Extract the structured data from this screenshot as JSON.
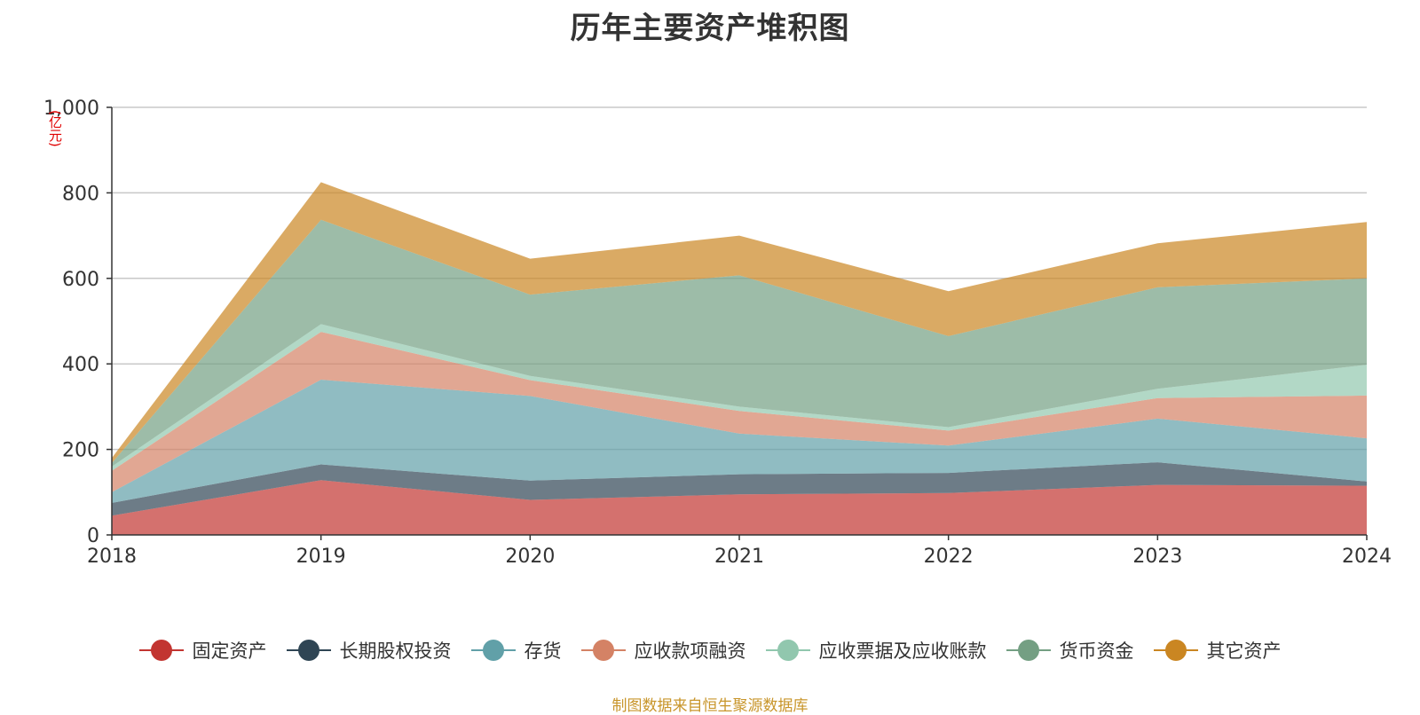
{
  "title": "历年主要资产堆积图",
  "unit": "(亿元)",
  "source": "制图数据来自恒生聚源数据库",
  "chart_data": {
    "type": "area",
    "stacked": true,
    "title": "历年主要资产堆积图",
    "ylabel": "(亿元)",
    "xlabel": "",
    "ylim": [
      0,
      1000
    ],
    "yticks": [
      0,
      200,
      400,
      600,
      800,
      1000
    ],
    "ytick_labels": [
      "0",
      "200",
      "400",
      "600",
      "800",
      "1,000"
    ],
    "grid": true,
    "legend_position": "bottom",
    "categories": [
      "2018",
      "2019",
      "2020",
      "2021",
      "2022",
      "2023",
      "2024"
    ],
    "series": [
      {
        "name": "固定资产",
        "color": "#c23531",
        "values": [
          45,
          128,
          82,
          95,
          98,
          117,
          115
        ]
      },
      {
        "name": "长期股权投资",
        "color": "#2f4554",
        "values": [
          30,
          37,
          45,
          47,
          47,
          53,
          10
        ]
      },
      {
        "name": "存货",
        "color": "#61a0a8",
        "values": [
          25,
          198,
          198,
          95,
          64,
          102,
          101
        ]
      },
      {
        "name": "应收款项融资",
        "color": "#d48265",
        "values": [
          50,
          112,
          37,
          53,
          35,
          48,
          100
        ]
      },
      {
        "name": "应收票据及应收账款",
        "color": "#91c7ae",
        "values": [
          10,
          18,
          10,
          10,
          8,
          22,
          72
        ]
      },
      {
        "name": "货币资金",
        "color": "#749f83",
        "values": [
          8,
          244,
          190,
          307,
          213,
          237,
          202
        ]
      },
      {
        "name": "其它资产",
        "color": "#ca8622",
        "values": [
          12,
          88,
          84,
          93,
          105,
          103,
          132
        ]
      }
    ]
  }
}
